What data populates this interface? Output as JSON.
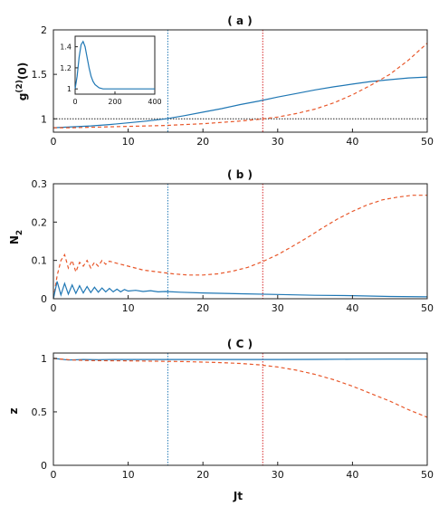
{
  "chart_data": [
    {
      "type": "line",
      "panel": "a",
      "title": "( a )",
      "xlabel": "",
      "ylabel": "g(2)(0)",
      "ylabel_main": "g",
      "ylabel_sup": "(2)",
      "ylabel_tail": "(0)",
      "xlim": [
        0,
        50
      ],
      "ylim": [
        0.85,
        2
      ],
      "xticks": [
        "0",
        "10",
        "20",
        "30",
        "40",
        "50"
      ],
      "yticks": [
        "1",
        "1.5",
        "2"
      ],
      "hline": 1,
      "vlines": [
        {
          "x": 15.3,
          "color": "#1f77b4"
        },
        {
          "x": 28,
          "color": "#d62728"
        }
      ],
      "series": [
        {
          "color": "#1f77b4",
          "style": "solid",
          "x": [
            0,
            2.5,
            5,
            7.5,
            10,
            12.5,
            15,
            17.5,
            20,
            22.5,
            25,
            27.5,
            30,
            32.5,
            35,
            37.5,
            40,
            42.5,
            45,
            47.5,
            50
          ],
          "values": [
            0.9,
            0.91,
            0.92,
            0.935,
            0.955,
            0.975,
            1.0,
            1.035,
            1.075,
            1.115,
            1.16,
            1.2,
            1.245,
            1.285,
            1.325,
            1.36,
            1.39,
            1.42,
            1.44,
            1.46,
            1.47
          ]
        },
        {
          "color": "#e8572a",
          "style": "dashed",
          "x": [
            0,
            2.5,
            5,
            7.5,
            10,
            12.5,
            15,
            17.5,
            20,
            22.5,
            25,
            27.5,
            30,
            32.5,
            35,
            37.5,
            40,
            42.5,
            45,
            47.5,
            50
          ],
          "values": [
            0.9,
            0.9,
            0.905,
            0.91,
            0.915,
            0.92,
            0.925,
            0.935,
            0.945,
            0.96,
            0.975,
            0.995,
            1.02,
            1.06,
            1.11,
            1.18,
            1.27,
            1.38,
            1.5,
            1.66,
            1.85
          ]
        }
      ],
      "inset": {
        "xlim": [
          0,
          400
        ],
        "ylim": [
          0.95,
          1.5
        ],
        "xticks": [
          "0",
          "200",
          "400"
        ],
        "yticks": [
          "1",
          "1.2",
          "1.4"
        ],
        "series": [
          {
            "color": "#1f77b4",
            "style": "solid",
            "x": [
              0,
              10,
              20,
              30,
              40,
              50,
              60,
              70,
              80,
              90,
              100,
              120,
              140,
              160,
              180,
              200,
              250,
              300,
              350,
              400
            ],
            "values": [
              1.0,
              1.12,
              1.3,
              1.42,
              1.45,
              1.4,
              1.3,
              1.2,
              1.12,
              1.07,
              1.04,
              1.01,
              1.0,
              1.0,
              1.0,
              1.0,
              1.0,
              1.0,
              1.0,
              1.0
            ]
          }
        ]
      }
    },
    {
      "type": "line",
      "panel": "b",
      "title": "( b )",
      "xlabel": "",
      "ylabel": "N2",
      "ylabel_main": "N",
      "ylabel_sub": "2",
      "xlim": [
        0,
        50
      ],
      "ylim": [
        0,
        0.3
      ],
      "xticks": [
        "0",
        "10",
        "20",
        "30",
        "40",
        "50"
      ],
      "yticks": [
        "0",
        "0.1",
        "0.2",
        "0.3"
      ],
      "vlines": [
        {
          "x": 15.3,
          "color": "#1f77b4"
        },
        {
          "x": 28,
          "color": "#d62728"
        }
      ],
      "series": [
        {
          "color": "#e8572a",
          "style": "dashed",
          "x": [
            0,
            0.5,
            1,
            1.5,
            2,
            2.5,
            3,
            3.5,
            4,
            4.5,
            5,
            5.5,
            6,
            6.5,
            7,
            7.5,
            8,
            9,
            10,
            12,
            14,
            16,
            18,
            20,
            22,
            24,
            26,
            28,
            30,
            32,
            34,
            36,
            38,
            40,
            42,
            44,
            46,
            48,
            50
          ],
          "values": [
            0,
            0.06,
            0.1,
            0.115,
            0.08,
            0.1,
            0.07,
            0.095,
            0.085,
            0.1,
            0.08,
            0.095,
            0.085,
            0.1,
            0.09,
            0.098,
            0.095,
            0.09,
            0.085,
            0.075,
            0.07,
            0.065,
            0.062,
            0.062,
            0.065,
            0.072,
            0.082,
            0.097,
            0.115,
            0.137,
            0.16,
            0.185,
            0.208,
            0.228,
            0.245,
            0.258,
            0.265,
            0.27,
            0.27
          ]
        },
        {
          "color": "#1f77b4",
          "style": "solid",
          "x": [
            0,
            0.5,
            1,
            1.5,
            2,
            2.5,
            3,
            3.5,
            4,
            4.5,
            5,
            5.5,
            6,
            6.5,
            7,
            7.5,
            8,
            8.5,
            9,
            9.5,
            10,
            11,
            12,
            13,
            14,
            15,
            17,
            20,
            25,
            30,
            35,
            40,
            45,
            50
          ],
          "values": [
            0,
            0.045,
            0.01,
            0.04,
            0.012,
            0.036,
            0.014,
            0.034,
            0.015,
            0.032,
            0.016,
            0.03,
            0.017,
            0.028,
            0.018,
            0.027,
            0.018,
            0.025,
            0.018,
            0.024,
            0.02,
            0.022,
            0.019,
            0.021,
            0.018,
            0.019,
            0.017,
            0.015,
            0.013,
            0.011,
            0.009,
            0.008,
            0.006,
            0.005
          ]
        }
      ]
    },
    {
      "type": "line",
      "panel": "c",
      "title": "( C )",
      "xlabel": "Jt",
      "ylabel": "z",
      "xlim": [
        0,
        50
      ],
      "ylim": [
        0,
        1.05
      ],
      "xticks": [
        "0",
        "10",
        "20",
        "30",
        "40",
        "50"
      ],
      "yticks": [
        "0",
        "0.5",
        "1"
      ],
      "vlines": [
        {
          "x": 15.3,
          "color": "#1f77b4"
        },
        {
          "x": 28,
          "color": "#d62728"
        }
      ],
      "series": [
        {
          "color": "#1f77b4",
          "style": "solid",
          "x": [
            0,
            2,
            4,
            6,
            8,
            10,
            15,
            20,
            25,
            30,
            35,
            40,
            45,
            50
          ],
          "values": [
            1.0,
            0.985,
            0.99,
            0.988,
            0.99,
            0.99,
            0.99,
            0.99,
            0.99,
            0.99,
            0.991,
            0.992,
            0.993,
            0.993
          ]
        },
        {
          "color": "#e8572a",
          "style": "dashed",
          "x": [
            0,
            2.5,
            5,
            7.5,
            10,
            12.5,
            15,
            17.5,
            20,
            22.5,
            25,
            27.5,
            30,
            32.5,
            35,
            37.5,
            40,
            42.5,
            45,
            47.5,
            50
          ],
          "values": [
            1.0,
            0.985,
            0.98,
            0.978,
            0.977,
            0.975,
            0.972,
            0.97,
            0.965,
            0.96,
            0.953,
            0.94,
            0.92,
            0.89,
            0.85,
            0.8,
            0.74,
            0.67,
            0.6,
            0.52,
            0.45
          ]
        }
      ]
    }
  ]
}
